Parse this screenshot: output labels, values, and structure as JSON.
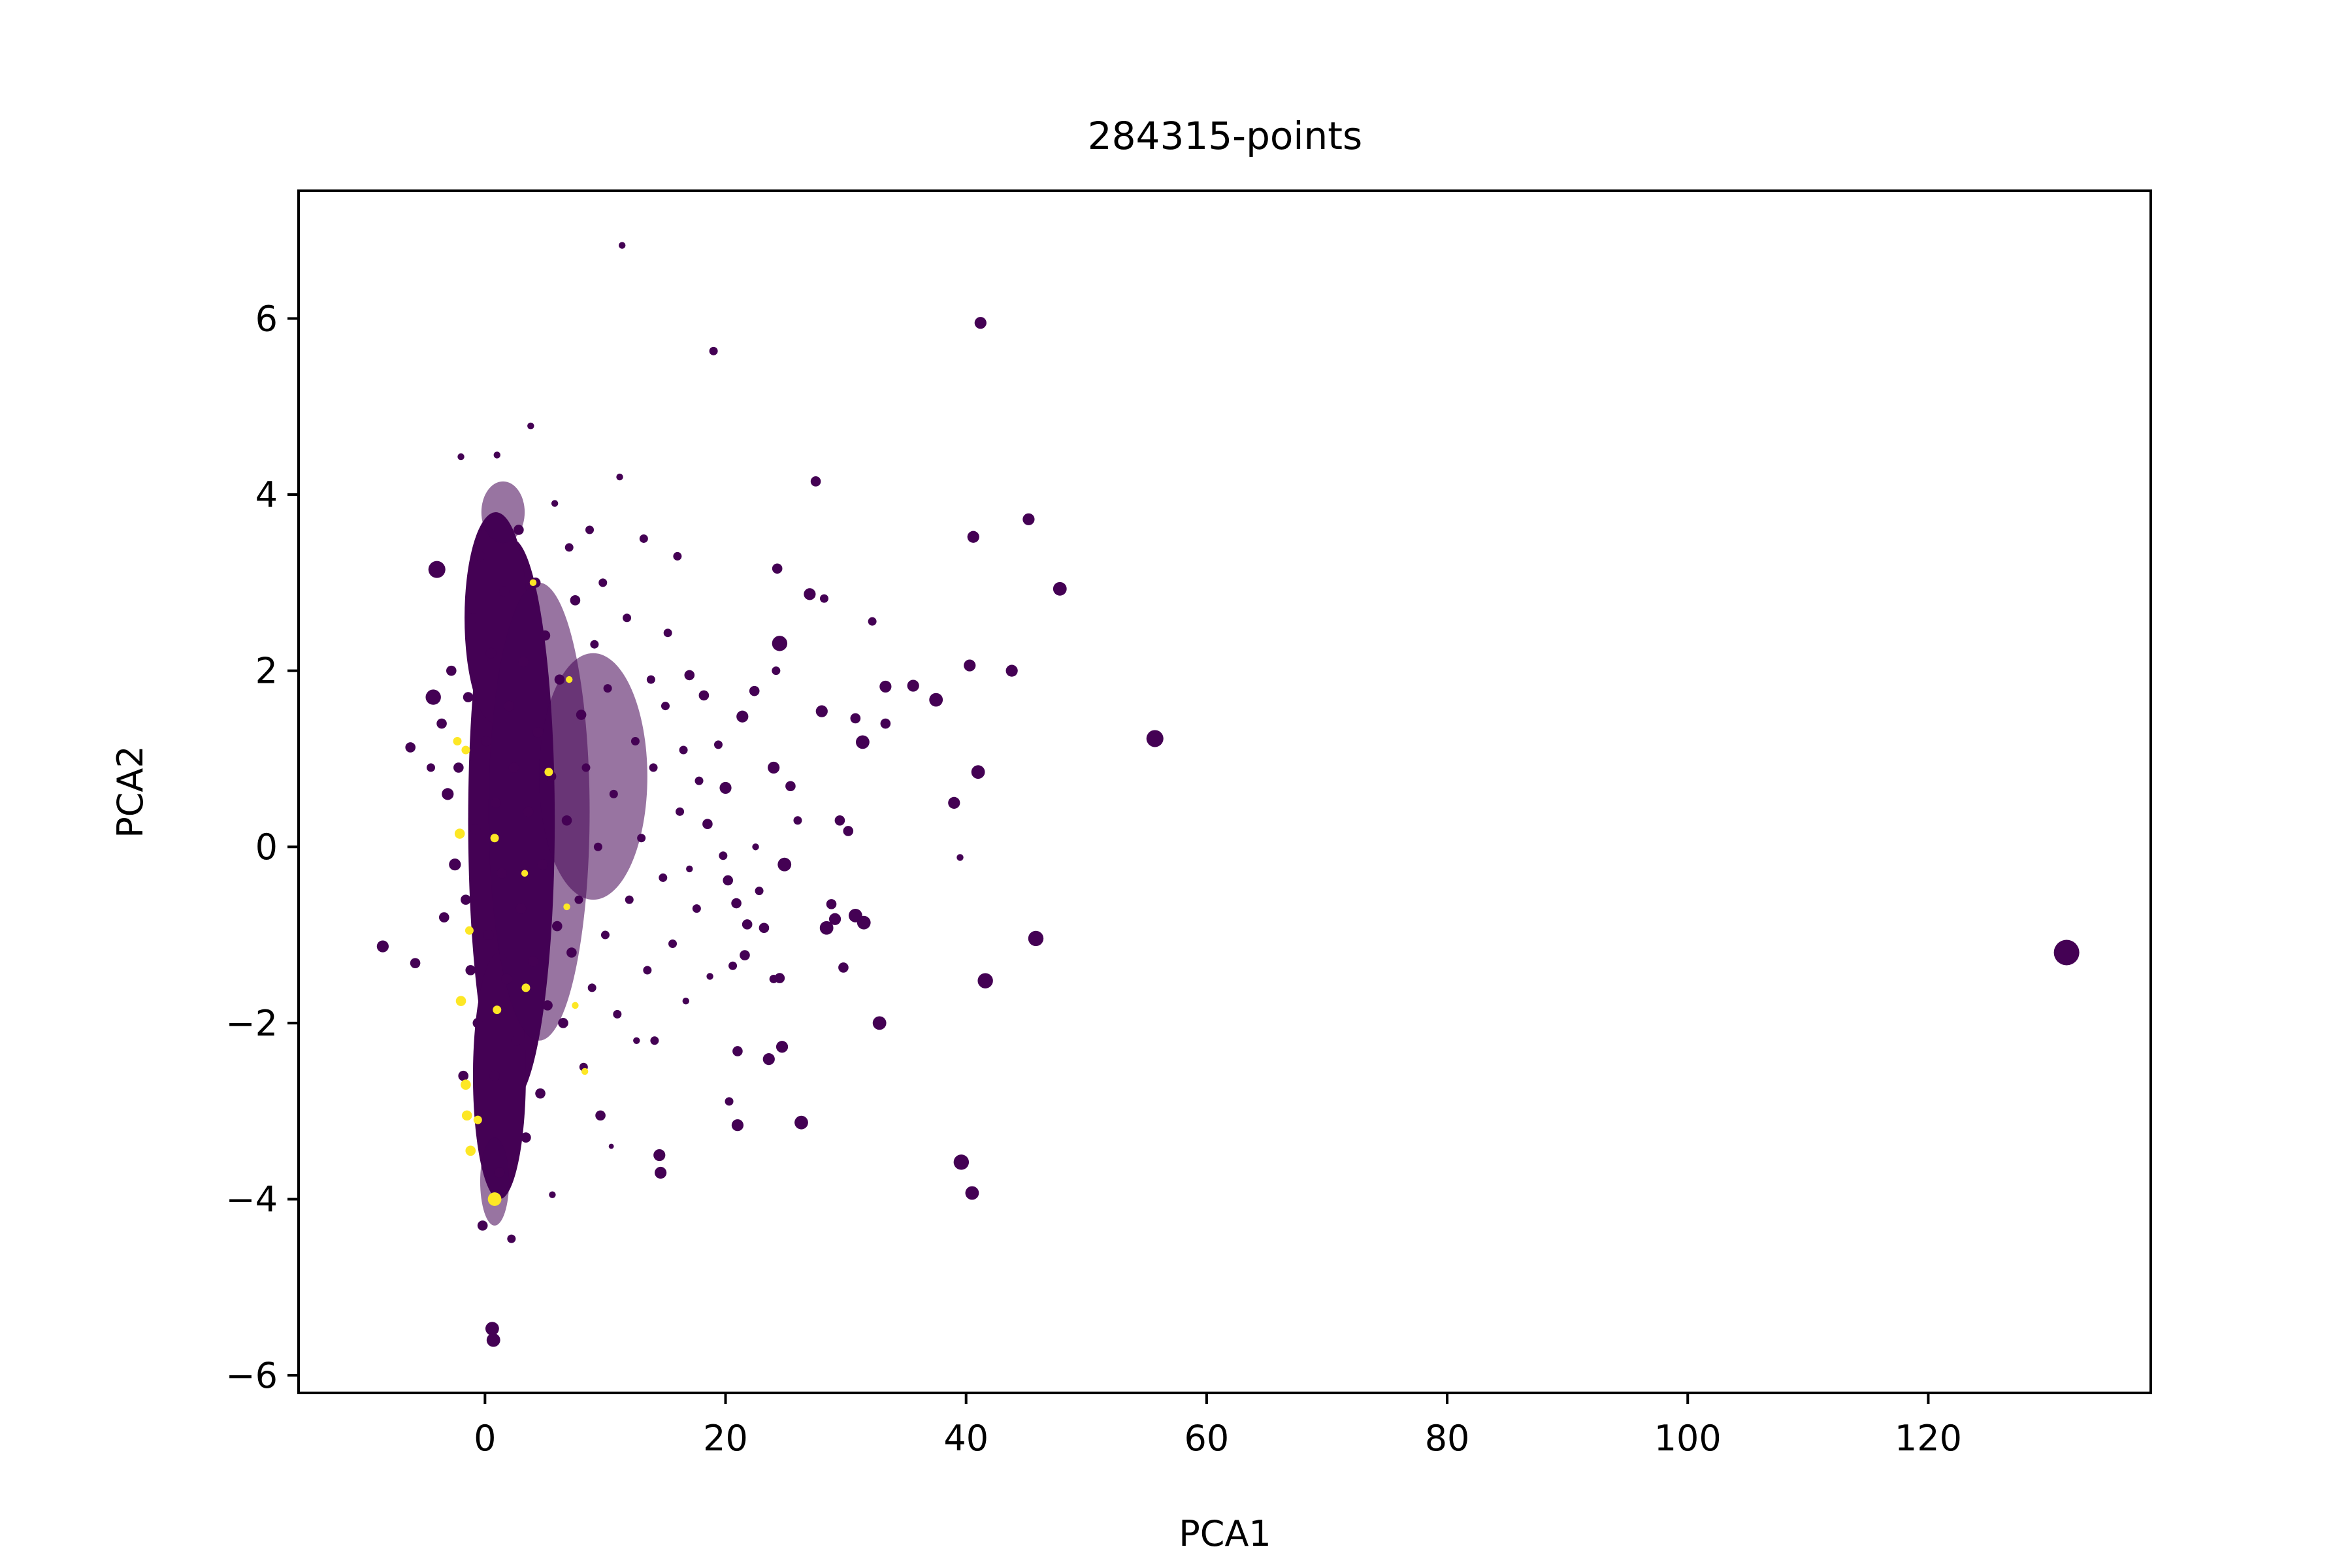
{
  "chart_data": {
    "type": "scatter",
    "title": "284315-points",
    "xlabel": "PCA1",
    "ylabel": "PCA2",
    "xlim": [
      -15.5,
      138.5
    ],
    "ylim": [
      -6.2,
      7.45
    ],
    "xticks": [
      0,
      20,
      40,
      60,
      80,
      100,
      120
    ],
    "yticks": [
      -6,
      -4,
      -2,
      0,
      2,
      4,
      6
    ],
    "xtick_labels": [
      "0",
      "20",
      "40",
      "60",
      "80",
      "100",
      "120"
    ],
    "ytick_labels": [
      "−6",
      "−4",
      "−2",
      "0",
      "2",
      "4",
      "6"
    ],
    "grid": false,
    "legend": "none",
    "colors": {
      "class_0": "#440154",
      "class_1": "#fde725"
    },
    "points": [
      {
        "x": 131.5,
        "y": -1.2,
        "c": 0,
        "s": 1.5
      },
      {
        "x": 55.7,
        "y": 1.23,
        "c": 0,
        "s": 1.0
      },
      {
        "x": 47.8,
        "y": 2.93,
        "c": 0,
        "s": 0.8
      },
      {
        "x": 45.8,
        "y": -1.04,
        "c": 0,
        "s": 0.9
      },
      {
        "x": 45.2,
        "y": 3.72,
        "c": 0,
        "s": 0.7
      },
      {
        "x": 43.8,
        "y": 2.0,
        "c": 0,
        "s": 0.7
      },
      {
        "x": 41.6,
        "y": -1.52,
        "c": 0,
        "s": 0.9
      },
      {
        "x": 41.2,
        "y": 5.95,
        "c": 0,
        "s": 0.7
      },
      {
        "x": 41.0,
        "y": 0.85,
        "c": 0,
        "s": 0.8
      },
      {
        "x": 40.6,
        "y": 3.52,
        "c": 0,
        "s": 0.7
      },
      {
        "x": 40.5,
        "y": -3.93,
        "c": 0,
        "s": 0.8
      },
      {
        "x": 40.3,
        "y": 2.06,
        "c": 0,
        "s": 0.7
      },
      {
        "x": 39.6,
        "y": -3.58,
        "c": 0,
        "s": 0.9
      },
      {
        "x": 39.0,
        "y": 0.5,
        "c": 0,
        "s": 0.7
      },
      {
        "x": 39.5,
        "y": -0.12,
        "c": 0,
        "s": 0.4
      },
      {
        "x": 37.5,
        "y": 1.67,
        "c": 0,
        "s": 0.8
      },
      {
        "x": 35.6,
        "y": 1.83,
        "c": 0,
        "s": 0.7
      },
      {
        "x": 33.3,
        "y": 1.82,
        "c": 0,
        "s": 0.7
      },
      {
        "x": 33.3,
        "y": 1.4,
        "c": 0,
        "s": 0.6
      },
      {
        "x": 32.8,
        "y": -2.0,
        "c": 0,
        "s": 0.8
      },
      {
        "x": 32.2,
        "y": 2.56,
        "c": 0,
        "s": 0.5
      },
      {
        "x": 31.5,
        "y": -0.86,
        "c": 0,
        "s": 0.8
      },
      {
        "x": 31.4,
        "y": 1.19,
        "c": 0,
        "s": 0.8
      },
      {
        "x": 30.8,
        "y": -0.78,
        "c": 0,
        "s": 0.8
      },
      {
        "x": 30.8,
        "y": 1.46,
        "c": 0,
        "s": 0.6
      },
      {
        "x": 30.2,
        "y": 0.18,
        "c": 0,
        "s": 0.6
      },
      {
        "x": 29.5,
        "y": 0.3,
        "c": 0,
        "s": 0.6
      },
      {
        "x": 29.8,
        "y": -1.37,
        "c": 0,
        "s": 0.6
      },
      {
        "x": 29.1,
        "y": -0.82,
        "c": 0,
        "s": 0.7
      },
      {
        "x": 28.4,
        "y": -0.92,
        "c": 0,
        "s": 0.8
      },
      {
        "x": 28.8,
        "y": -0.65,
        "c": 0,
        "s": 0.6
      },
      {
        "x": 27.5,
        "y": 4.15,
        "c": 0,
        "s": 0.6
      },
      {
        "x": 28.2,
        "y": 2.82,
        "c": 0,
        "s": 0.5
      },
      {
        "x": 28.0,
        "y": 1.54,
        "c": 0,
        "s": 0.7
      },
      {
        "x": 27.0,
        "y": 2.87,
        "c": 0,
        "s": 0.7
      },
      {
        "x": 26.3,
        "y": -3.13,
        "c": 0,
        "s": 0.8
      },
      {
        "x": 26.0,
        "y": 0.3,
        "c": 0,
        "s": 0.5
      },
      {
        "x": 25.4,
        "y": 0.69,
        "c": 0,
        "s": 0.6
      },
      {
        "x": 24.9,
        "y": -0.2,
        "c": 0,
        "s": 0.8
      },
      {
        "x": 24.7,
        "y": -2.27,
        "c": 0,
        "s": 0.7
      },
      {
        "x": 24.5,
        "y": -1.49,
        "c": 0,
        "s": 0.6
      },
      {
        "x": 24.5,
        "y": 2.31,
        "c": 0,
        "s": 0.9
      },
      {
        "x": 24.3,
        "y": 3.16,
        "c": 0,
        "s": 0.6
      },
      {
        "x": 24.0,
        "y": 0.9,
        "c": 0,
        "s": 0.7
      },
      {
        "x": 24.2,
        "y": 2.0,
        "c": 0,
        "s": 0.5
      },
      {
        "x": 24.0,
        "y": -1.5,
        "c": 0,
        "s": 0.5
      },
      {
        "x": 23.6,
        "y": -2.41,
        "c": 0,
        "s": 0.7
      },
      {
        "x": 23.2,
        "y": -0.92,
        "c": 0,
        "s": 0.6
      },
      {
        "x": 22.8,
        "y": -0.5,
        "c": 0,
        "s": 0.5
      },
      {
        "x": 22.5,
        "y": 0.0,
        "c": 0,
        "s": 0.4
      },
      {
        "x": 22.4,
        "y": 1.77,
        "c": 0,
        "s": 0.6
      },
      {
        "x": 21.6,
        "y": -1.23,
        "c": 0,
        "s": 0.6
      },
      {
        "x": 21.8,
        "y": -0.88,
        "c": 0,
        "s": 0.6
      },
      {
        "x": 21.4,
        "y": 1.48,
        "c": 0,
        "s": 0.7
      },
      {
        "x": 21.0,
        "y": -3.16,
        "c": 0,
        "s": 0.7
      },
      {
        "x": 21.0,
        "y": -2.32,
        "c": 0,
        "s": 0.6
      },
      {
        "x": 20.9,
        "y": -0.64,
        "c": 0,
        "s": 0.6
      },
      {
        "x": 20.6,
        "y": -1.35,
        "c": 0,
        "s": 0.5
      },
      {
        "x": 20.3,
        "y": -2.89,
        "c": 0,
        "s": 0.5
      },
      {
        "x": 20.2,
        "y": -0.38,
        "c": 0,
        "s": 0.6
      },
      {
        "x": 20.0,
        "y": 0.67,
        "c": 0,
        "s": 0.7
      },
      {
        "x": 19.8,
        "y": -0.1,
        "c": 0,
        "s": 0.5
      },
      {
        "x": 19.4,
        "y": 1.16,
        "c": 0,
        "s": 0.5
      },
      {
        "x": 19.0,
        "y": 5.63,
        "c": 0,
        "s": 0.5
      },
      {
        "x": 18.5,
        "y": 0.26,
        "c": 0,
        "s": 0.6
      },
      {
        "x": 18.7,
        "y": -1.47,
        "c": 0,
        "s": 0.4
      },
      {
        "x": 18.2,
        "y": 1.72,
        "c": 0,
        "s": 0.6
      },
      {
        "x": 17.8,
        "y": 0.75,
        "c": 0,
        "s": 0.5
      },
      {
        "x": 17.6,
        "y": -0.7,
        "c": 0,
        "s": 0.5
      },
      {
        "x": 17.0,
        "y": 1.95,
        "c": 0,
        "s": 0.6
      },
      {
        "x": 17.0,
        "y": -0.25,
        "c": 0,
        "s": 0.4
      },
      {
        "x": 16.5,
        "y": 1.1,
        "c": 0,
        "s": 0.5
      },
      {
        "x": 16.7,
        "y": -1.75,
        "c": 0,
        "s": 0.4
      },
      {
        "x": 16.0,
        "y": 3.3,
        "c": 0,
        "s": 0.5
      },
      {
        "x": 16.2,
        "y": 0.4,
        "c": 0,
        "s": 0.5
      },
      {
        "x": 15.6,
        "y": -1.1,
        "c": 0,
        "s": 0.5
      },
      {
        "x": 15.2,
        "y": 2.43,
        "c": 0,
        "s": 0.5
      },
      {
        "x": 15.0,
        "y": 1.6,
        "c": 0,
        "s": 0.5
      },
      {
        "x": 14.8,
        "y": -0.35,
        "c": 0,
        "s": 0.5
      },
      {
        "x": 14.5,
        "y": -3.5,
        "c": 0,
        "s": 0.7
      },
      {
        "x": 14.6,
        "y": -3.7,
        "c": 0,
        "s": 0.7
      },
      {
        "x": 14.1,
        "y": -2.2,
        "c": 0,
        "s": 0.5
      },
      {
        "x": 14.0,
        "y": 0.9,
        "c": 0,
        "s": 0.5
      },
      {
        "x": 13.8,
        "y": 1.9,
        "c": 0,
        "s": 0.5
      },
      {
        "x": 13.5,
        "y": -1.4,
        "c": 0,
        "s": 0.5
      },
      {
        "x": 13.2,
        "y": 3.5,
        "c": 0,
        "s": 0.5
      },
      {
        "x": 13.0,
        "y": 0.1,
        "c": 0,
        "s": 0.5
      },
      {
        "x": 12.6,
        "y": -2.2,
        "c": 0,
        "s": 0.4
      },
      {
        "x": 12.5,
        "y": 1.2,
        "c": 0,
        "s": 0.5
      },
      {
        "x": 12.0,
        "y": -0.6,
        "c": 0,
        "s": 0.5
      },
      {
        "x": 11.8,
        "y": 2.6,
        "c": 0,
        "s": 0.5
      },
      {
        "x": 11.4,
        "y": 6.83,
        "c": 0,
        "s": 0.4
      },
      {
        "x": 11.2,
        "y": 4.2,
        "c": 0,
        "s": 0.4
      },
      {
        "x": 11.0,
        "y": -1.9,
        "c": 0,
        "s": 0.5
      },
      {
        "x": 10.7,
        "y": 0.6,
        "c": 0,
        "s": 0.5
      },
      {
        "x": 10.5,
        "y": -3.4,
        "c": 0,
        "s": 0.3
      },
      {
        "x": 10.2,
        "y": 1.8,
        "c": 0,
        "s": 0.5
      },
      {
        "x": 10.0,
        "y": -1.0,
        "c": 0,
        "s": 0.5
      },
      {
        "x": 9.8,
        "y": 3.0,
        "c": 0,
        "s": 0.5
      },
      {
        "x": 9.6,
        "y": -3.05,
        "c": 0,
        "s": 0.6
      },
      {
        "x": 9.4,
        "y": 0.0,
        "c": 0,
        "s": 0.5
      },
      {
        "x": 9.1,
        "y": 2.3,
        "c": 0,
        "s": 0.5
      },
      {
        "x": 8.9,
        "y": -1.6,
        "c": 0,
        "s": 0.5
      },
      {
        "x": 8.7,
        "y": 3.6,
        "c": 0,
        "s": 0.5
      },
      {
        "x": 8.4,
        "y": 0.9,
        "c": 0,
        "s": 0.5
      },
      {
        "x": 8.2,
        "y": -2.5,
        "c": 0,
        "s": 0.5
      },
      {
        "x": 8.0,
        "y": 1.5,
        "c": 0,
        "s": 0.6
      },
      {
        "x": 7.8,
        "y": -0.6,
        "c": 0,
        "s": 0.5
      },
      {
        "x": 7.5,
        "y": 2.8,
        "c": 0,
        "s": 0.6
      },
      {
        "x": 7.2,
        "y": -1.2,
        "c": 0,
        "s": 0.6
      },
      {
        "x": 7.0,
        "y": 3.4,
        "c": 0,
        "s": 0.5
      },
      {
        "x": 6.8,
        "y": 0.3,
        "c": 0,
        "s": 0.6
      },
      {
        "x": 6.5,
        "y": -2.0,
        "c": 0,
        "s": 0.6
      },
      {
        "x": 6.2,
        "y": 1.9,
        "c": 0,
        "s": 0.6
      },
      {
        "x": 6.0,
        "y": -0.9,
        "c": 0,
        "s": 0.6
      },
      {
        "x": 5.8,
        "y": 3.9,
        "c": 0,
        "s": 0.4
      },
      {
        "x": 5.6,
        "y": -3.95,
        "c": 0,
        "s": 0.4
      },
      {
        "x": 5.5,
        "y": 0.8,
        "c": 0,
        "s": 0.6
      },
      {
        "x": 5.2,
        "y": -1.8,
        "c": 0,
        "s": 0.6
      },
      {
        "x": 5.0,
        "y": 2.4,
        "c": 0,
        "s": 0.6
      },
      {
        "x": 4.8,
        "y": -0.2,
        "c": 0,
        "s": 0.6
      },
      {
        "x": 4.6,
        "y": -2.8,
        "c": 0,
        "s": 0.6
      },
      {
        "x": 4.4,
        "y": 1.3,
        "c": 0,
        "s": 0.6
      },
      {
        "x": 4.2,
        "y": 3.0,
        "c": 0,
        "s": 0.6
      },
      {
        "x": 4.0,
        "y": -1.3,
        "c": 0,
        "s": 0.6
      },
      {
        "x": 3.8,
        "y": 4.78,
        "c": 0,
        "s": 0.4
      },
      {
        "x": 3.6,
        "y": 0.4,
        "c": 0,
        "s": 0.6
      },
      {
        "x": 3.4,
        "y": -3.3,
        "c": 0,
        "s": 0.6
      },
      {
        "x": 3.2,
        "y": 2.1,
        "c": 0,
        "s": 0.6
      },
      {
        "x": 3.0,
        "y": -0.7,
        "c": 0,
        "s": 0.6
      },
      {
        "x": 2.8,
        "y": 3.6,
        "c": 0,
        "s": 0.6
      },
      {
        "x": 2.6,
        "y": -2.2,
        "c": 0,
        "s": 0.6
      },
      {
        "x": 2.4,
        "y": 0.9,
        "c": 0,
        "s": 0.6
      },
      {
        "x": 2.2,
        "y": -4.45,
        "c": 0,
        "s": 0.5
      },
      {
        "x": 2.0,
        "y": 1.6,
        "c": 0,
        "s": 0.6
      },
      {
        "x": 1.8,
        "y": -1.5,
        "c": 0,
        "s": 0.6
      },
      {
        "x": 1.6,
        "y": 2.9,
        "c": 0,
        "s": 0.6
      },
      {
        "x": 1.4,
        "y": -0.3,
        "c": 0,
        "s": 0.6
      },
      {
        "x": 1.2,
        "y": -3.7,
        "c": 0,
        "s": 0.6
      },
      {
        "x": 1.0,
        "y": 4.45,
        "c": 0,
        "s": 0.4
      },
      {
        "x": 0.9,
        "y": 0.5,
        "c": 0,
        "s": 0.6
      },
      {
        "x": 0.8,
        "y": -2.6,
        "c": 0,
        "s": 0.6
      },
      {
        "x": 0.6,
        "y": -5.47,
        "c": 0,
        "s": 0.8
      },
      {
        "x": 0.7,
        "y": -5.6,
        "c": 0,
        "s": 0.8
      },
      {
        "x": 0.5,
        "y": 2.2,
        "c": 0,
        "s": 0.6
      },
      {
        "x": 0.3,
        "y": -1.0,
        "c": 0,
        "s": 0.6
      },
      {
        "x": 0.1,
        "y": 1.2,
        "c": 0,
        "s": 0.6
      },
      {
        "x": -0.2,
        "y": -4.3,
        "c": 0,
        "s": 0.6
      },
      {
        "x": -0.4,
        "y": 3.3,
        "c": 0,
        "s": 0.6
      },
      {
        "x": -0.6,
        "y": -2.0,
        "c": 0,
        "s": 0.6
      },
      {
        "x": -0.8,
        "y": 0.2,
        "c": 0,
        "s": 0.6
      },
      {
        "x": -1.0,
        "y": 2.6,
        "c": 0,
        "s": 0.6
      },
      {
        "x": -1.2,
        "y": -1.4,
        "c": 0,
        "s": 0.6
      },
      {
        "x": -1.4,
        "y": 1.7,
        "c": 0,
        "s": 0.6
      },
      {
        "x": -1.6,
        "y": -0.6,
        "c": 0,
        "s": 0.6
      },
      {
        "x": -1.8,
        "y": -2.6,
        "c": 0,
        "s": 0.6
      },
      {
        "x": -2.0,
        "y": 4.43,
        "c": 0,
        "s": 0.4
      },
      {
        "x": -2.2,
        "y": 0.9,
        "c": 0,
        "s": 0.6
      },
      {
        "x": -2.5,
        "y": -0.2,
        "c": 0,
        "s": 0.7
      },
      {
        "x": -2.8,
        "y": 2.0,
        "c": 0,
        "s": 0.6
      },
      {
        "x": -3.1,
        "y": 0.6,
        "c": 0,
        "s": 0.7
      },
      {
        "x": -3.4,
        "y": -0.8,
        "c": 0,
        "s": 0.6
      },
      {
        "x": -3.6,
        "y": 1.4,
        "c": 0,
        "s": 0.6
      },
      {
        "x": -4.0,
        "y": 3.15,
        "c": 0,
        "s": 1.0
      },
      {
        "x": -4.3,
        "y": 1.7,
        "c": 0,
        "s": 0.9
      },
      {
        "x": -4.5,
        "y": 0.9,
        "c": 0,
        "s": 0.5
      },
      {
        "x": -5.8,
        "y": -1.32,
        "c": 0,
        "s": 0.6
      },
      {
        "x": -6.2,
        "y": 1.13,
        "c": 0,
        "s": 0.6
      },
      {
        "x": -8.5,
        "y": -1.13,
        "c": 0,
        "s": 0.7
      },
      {
        "x": 0.8,
        "y": -4.0,
        "c": 1,
        "s": 0.8
      },
      {
        "x": -1.2,
        "y": -3.45,
        "c": 1,
        "s": 0.6
      },
      {
        "x": -1.5,
        "y": -3.05,
        "c": 1,
        "s": 0.6
      },
      {
        "x": -1.6,
        "y": -2.7,
        "c": 1,
        "s": 0.6
      },
      {
        "x": -2.0,
        "y": -1.75,
        "c": 1,
        "s": 0.6
      },
      {
        "x": 1.0,
        "y": -1.85,
        "c": 1,
        "s": 0.5
      },
      {
        "x": -2.1,
        "y": 0.15,
        "c": 1,
        "s": 0.6
      },
      {
        "x": 0.8,
        "y": 0.1,
        "c": 1,
        "s": 0.5
      },
      {
        "x": -1.6,
        "y": 1.1,
        "c": 1,
        "s": 0.5
      },
      {
        "x": -1.3,
        "y": -0.95,
        "c": 1,
        "s": 0.5
      },
      {
        "x": 3.4,
        "y": -1.6,
        "c": 1,
        "s": 0.5
      },
      {
        "x": 5.3,
        "y": 0.85,
        "c": 1,
        "s": 0.5
      },
      {
        "x": 3.3,
        "y": -0.3,
        "c": 1,
        "s": 0.4
      },
      {
        "x": 6.8,
        "y": -0.68,
        "c": 1,
        "s": 0.4
      },
      {
        "x": 8.3,
        "y": -2.55,
        "c": 1,
        "s": 0.4
      },
      {
        "x": 7.5,
        "y": -1.8,
        "c": 1,
        "s": 0.4
      },
      {
        "x": 4.0,
        "y": 3.0,
        "c": 1,
        "s": 0.4
      },
      {
        "x": 7.0,
        "y": 1.9,
        "c": 1,
        "s": 0.4
      },
      {
        "x": -0.6,
        "y": -3.1,
        "c": 1,
        "s": 0.5
      },
      {
        "x": -2.3,
        "y": 1.2,
        "c": 1,
        "s": 0.5
      }
    ]
  }
}
